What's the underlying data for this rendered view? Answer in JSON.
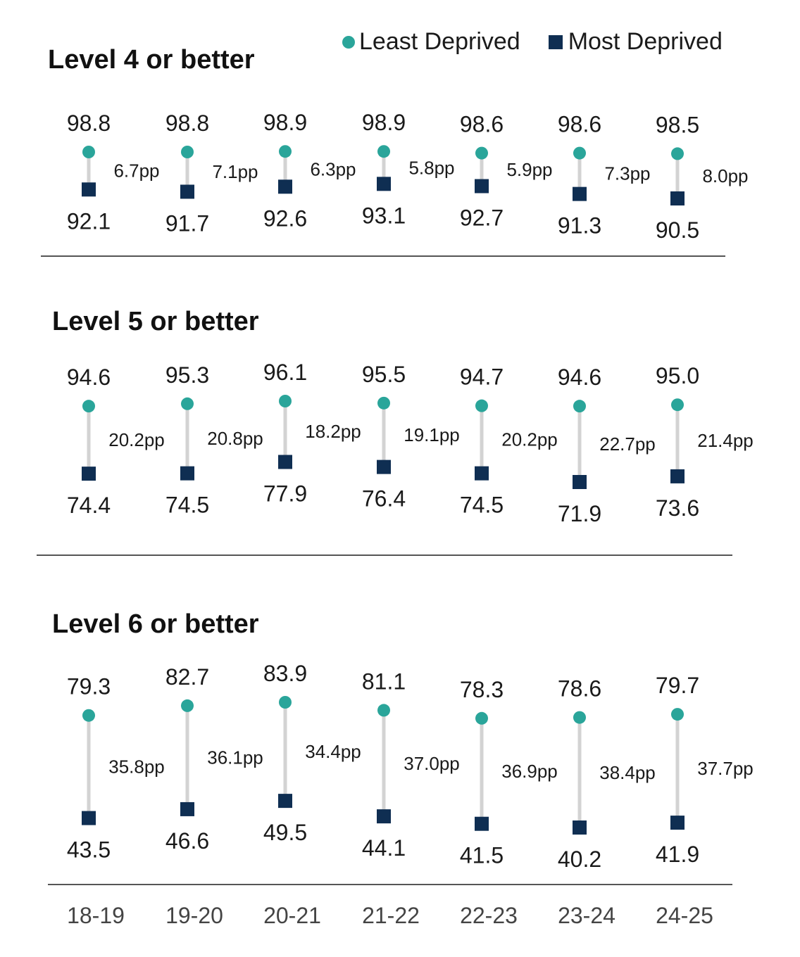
{
  "legend": {
    "least": "Least Deprived",
    "most": "Most Deprived"
  },
  "colors": {
    "least": "#2aa59a",
    "most": "#0f2e52",
    "stem": "#d3d3d3"
  },
  "chart_data": {
    "type": "dumbbell",
    "categories": [
      "18-19",
      "19-20",
      "20-21",
      "21-22",
      "22-23",
      "23-24",
      "24-25"
    ],
    "series_names": [
      "Least Deprived",
      "Most Deprived"
    ],
    "panels": [
      {
        "title": "Level 4 or better",
        "least": [
          98.8,
          98.8,
          98.9,
          98.9,
          98.6,
          98.6,
          98.5
        ],
        "most": [
          92.1,
          91.7,
          92.6,
          93.1,
          92.7,
          91.3,
          90.5
        ],
        "gap": [
          "6.7pp",
          "7.1pp",
          "6.3pp",
          "5.8pp",
          "5.9pp",
          "7.3pp",
          "8.0pp"
        ]
      },
      {
        "title": "Level 5 or better",
        "least": [
          94.6,
          95.3,
          96.1,
          95.5,
          94.7,
          94.6,
          95.0
        ],
        "most": [
          74.4,
          74.5,
          77.9,
          76.4,
          74.5,
          71.9,
          73.6
        ],
        "gap": [
          "20.2pp",
          "20.8pp",
          "18.2pp",
          "19.1pp",
          "20.2pp",
          "22.7pp",
          "21.4pp"
        ]
      },
      {
        "title": "Level 6 or better",
        "least": [
          79.3,
          82.7,
          83.9,
          81.1,
          78.3,
          78.6,
          79.7
        ],
        "most": [
          43.5,
          46.6,
          49.5,
          44.1,
          41.5,
          40.2,
          41.9
        ],
        "gap": [
          "35.8pp",
          "36.1pp",
          "34.4pp",
          "37.0pp",
          "36.9pp",
          "38.4pp",
          "37.7pp"
        ]
      }
    ]
  }
}
